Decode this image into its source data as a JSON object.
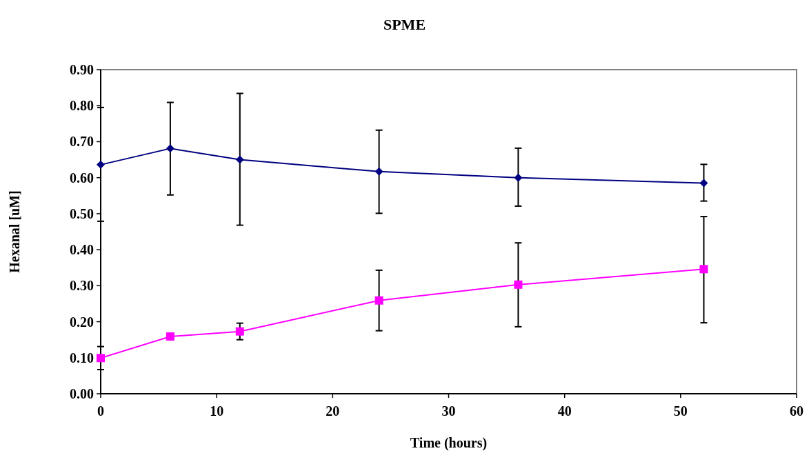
{
  "chart_data": {
    "type": "line",
    "title": "SPME",
    "xlabel": "Time (hours)",
    "ylabel": "Hexanal [uM]",
    "xlim": [
      0,
      60
    ],
    "xticks": [
      0,
      10,
      20,
      30,
      40,
      50,
      60
    ],
    "ylim": [
      0,
      0.9
    ],
    "yticks": [
      {
        "value": 0,
        "label": "0.00"
      },
      {
        "value": 0.1,
        "label": "0.10"
      },
      {
        "value": 0.2,
        "label": "0.20"
      },
      {
        "value": 0.3,
        "label": "0.30"
      },
      {
        "value": 0.4,
        "label": "0.40"
      },
      {
        "value": 0.5,
        "label": "0.50"
      },
      {
        "value": 0.6,
        "label": "0.60"
      },
      {
        "value": 0.7,
        "label": "0.70"
      },
      {
        "value": 0.8,
        "label": "0.80"
      },
      {
        "value": 0.9,
        "label": "0.90"
      }
    ],
    "x": [
      0,
      6,
      12,
      24,
      36,
      52
    ],
    "series": [
      {
        "color": "#000080",
        "marker": "diamond",
        "values": [
          0.636,
          0.681,
          0.65,
          0.617,
          0.6,
          0.585
        ],
        "errors": [
          [
            0.479,
            0.795
          ],
          [
            0.552,
            0.809
          ],
          [
            0.468,
            0.834
          ],
          [
            0.501,
            0.732
          ],
          [
            0.521,
            0.682
          ],
          [
            0.535,
            0.637
          ]
        ]
      },
      {
        "color": "#ff00ff",
        "marker": "square",
        "values": [
          0.099,
          0.159,
          0.173,
          0.259,
          0.303,
          0.346
        ],
        "errors": [
          [
            0.067,
            0.131
          ],
          null,
          [
            0.15,
            0.196
          ],
          [
            0.175,
            0.343
          ],
          [
            0.186,
            0.419
          ],
          [
            0.197,
            0.492
          ]
        ]
      }
    ]
  }
}
